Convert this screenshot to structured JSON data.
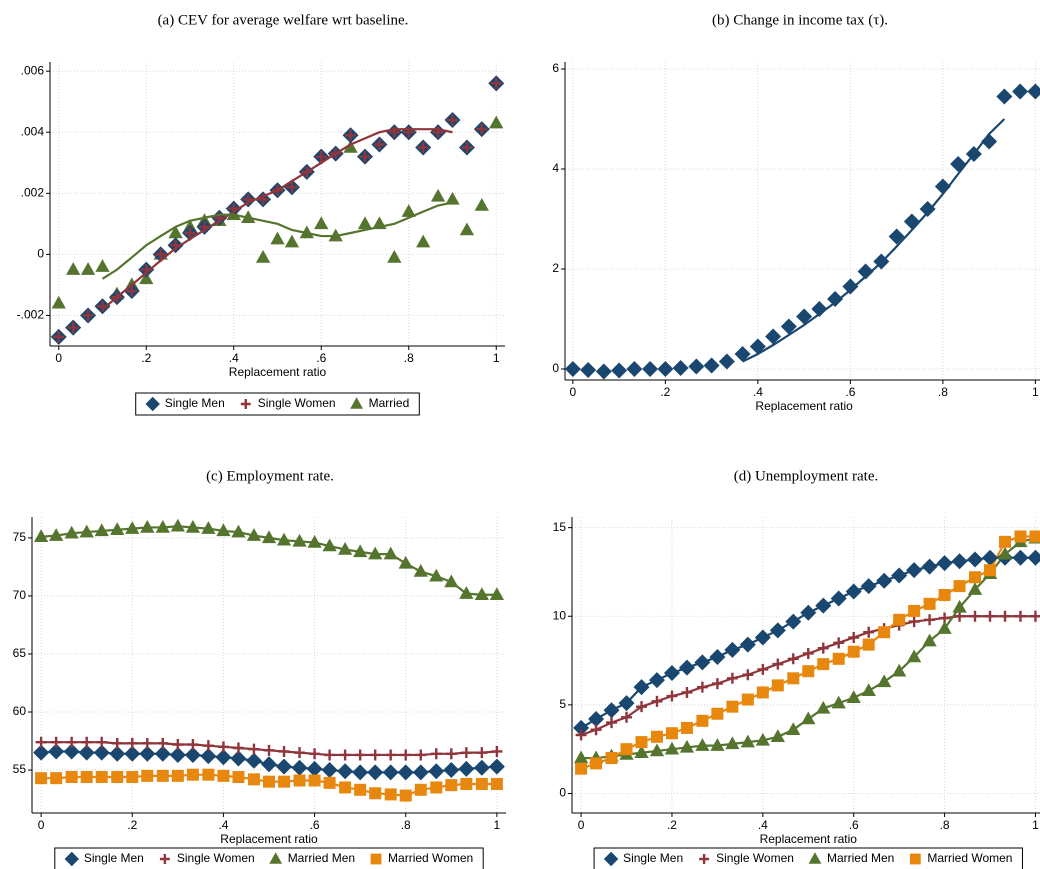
{
  "chart_data": [
    {
      "type": "scatter",
      "title": "(a) CEV for average welfare wrt baseline.",
      "x_label": "Replacement ratio",
      "x": [
        0,
        0.033,
        0.067,
        0.1,
        0.133,
        0.167,
        0.2,
        0.233,
        0.267,
        0.3,
        0.333,
        0.367,
        0.4,
        0.433,
        0.467,
        0.5,
        0.533,
        0.567,
        0.6,
        0.633,
        0.667,
        0.7,
        0.733,
        0.767,
        0.8,
        0.833,
        0.867,
        0.9,
        0.933,
        0.967,
        1
      ],
      "xlim": [
        -0.02,
        1.02
      ],
      "xticks": [
        0,
        {
          "value": 0.2,
          "label": ".2"
        },
        {
          "value": 0.4,
          "label": ".4"
        },
        {
          "value": 0.6,
          "label": ".6"
        },
        {
          "value": 0.8,
          "label": ".8"
        },
        1
      ],
      "ylim": [
        -0.003,
        0.0063
      ],
      "yticks": [
        {
          "value": -0.002,
          "label": "-.002"
        },
        0,
        {
          "value": 0.002,
          "label": ".002"
        },
        {
          "value": 0.004,
          "label": ".004"
        },
        {
          "value": 0.006,
          "label": ".006"
        }
      ],
      "grid": true,
      "legend": "bottom",
      "series": [
        {
          "name": "Single Men",
          "color": "#1a476f",
          "marker": "diamond",
          "values": [
            -0.0027,
            -0.0024,
            -0.002,
            -0.0017,
            -0.0014,
            -0.0012,
            -0.0005,
            0,
            0.0003,
            0.0007,
            0.0009,
            0.0012,
            0.0015,
            0.0018,
            0.0018,
            0.0021,
            0.0022,
            0.0027,
            0.0032,
            0.0033,
            0.0039,
            0.0032,
            0.0036,
            0.004,
            0.004,
            0.0035,
            0.004,
            0.0044,
            0.0035,
            0.0041,
            0.0056
          ]
        },
        {
          "name": "Single Women",
          "color": "#90353b",
          "marker": "plus",
          "values": [
            -0.0027,
            -0.0024,
            -0.002,
            -0.0017,
            -0.0014,
            -0.0012,
            -0.0005,
            0,
            0.0003,
            0.0007,
            0.0009,
            0.0012,
            0.0015,
            0.0018,
            0.0018,
            0.0021,
            0.0022,
            0.0027,
            0.0032,
            0.0033,
            0.0039,
            0.0032,
            0.0036,
            0.004,
            0.004,
            0.0035,
            0.004,
            0.0044,
            0.0035,
            0.0041,
            0.0056
          ],
          "fit": [
            null,
            null,
            null,
            -0.0018,
            -0.0014,
            -0.001,
            -0.0006,
            -0.0002,
            0.0002,
            0.0005,
            0.0008,
            0.0011,
            0.0014,
            0.0017,
            0.0019,
            0.0021,
            0.0024,
            0.0027,
            0.003,
            0.0033,
            0.0036,
            0.0038,
            0.004,
            0.0041,
            0.0041,
            0.0041,
            0.0041,
            0.004,
            null,
            null,
            null
          ]
        },
        {
          "name": "Married",
          "color": "#55752f",
          "marker": "triangle",
          "values": [
            -0.0016,
            -0.0005,
            -0.0005,
            -0.0004,
            -0.0013,
            -0.001,
            -0.0008,
            0,
            0.0007,
            0.0009,
            0.0011,
            0.0011,
            0.0013,
            0.0012,
            -0.0001,
            0.0005,
            0.0004,
            0.0007,
            0.001,
            0.0006,
            0.0035,
            0.001,
            0.001,
            -0.0001,
            0.0014,
            0.0004,
            0.0019,
            0.0018,
            0.0008,
            0.0016,
            0.0043
          ],
          "fit": [
            null,
            null,
            null,
            -0.0008,
            -0.0005,
            -0.0001,
            0.0003,
            0.0006,
            0.0009,
            0.0011,
            0.0012,
            0.0013,
            0.0013,
            0.0012,
            0.0011,
            0.001,
            0.0008,
            0.0007,
            0.0006,
            0.0006,
            0.0007,
            0.0008,
            0.0009,
            0.001,
            0.0012,
            0.0014,
            0.0016,
            0.0017,
            null,
            null,
            null
          ]
        }
      ]
    },
    {
      "type": "scatter",
      "title": "(b) Change in income tax (τ).",
      "x_label": "Replacement ratio",
      "x": [
        0,
        0.033,
        0.067,
        0.1,
        0.133,
        0.167,
        0.2,
        0.233,
        0.267,
        0.3,
        0.333,
        0.367,
        0.4,
        0.433,
        0.467,
        0.5,
        0.533,
        0.567,
        0.6,
        0.633,
        0.667,
        0.7,
        0.733,
        0.767,
        0.8,
        0.833,
        0.867,
        0.9,
        0.933,
        0.967,
        1
      ],
      "xlim": [
        -0.017,
        1.01
      ],
      "xticks": [
        0,
        {
          "value": 0.2,
          "label": ".2"
        },
        {
          "value": 0.4,
          "label": ".4"
        },
        {
          "value": 0.6,
          "label": ".6"
        },
        {
          "value": 0.8,
          "label": ".8"
        },
        1
      ],
      "ylim": [
        -0.22,
        6.14
      ],
      "yticks": [
        0,
        2,
        4,
        6
      ],
      "grid": true,
      "series": [
        {
          "color": "#1a476f",
          "marker": "diamond",
          "values": [
            0,
            -0.02,
            -0.05,
            -0.03,
            0,
            0,
            0,
            0.02,
            0.05,
            0.07,
            0.15,
            0.3,
            0.45,
            0.65,
            0.85,
            1.05,
            1.2,
            1.4,
            1.65,
            1.95,
            2.15,
            2.65,
            2.95,
            3.2,
            3.65,
            4.1,
            4.3,
            4.55,
            5.45,
            5.55,
            5.55
          ],
          "fit": [
            null,
            null,
            null,
            null,
            null,
            null,
            null,
            null,
            null,
            null,
            null,
            0.15,
            0.3,
            0.48,
            0.68,
            0.88,
            1.1,
            1.33,
            1.58,
            1.85,
            2.13,
            2.45,
            2.78,
            3.13,
            3.5,
            3.9,
            4.3,
            4.7,
            5.0,
            null,
            null
          ]
        }
      ]
    },
    {
      "type": "scatter",
      "title": "(c) Employment rate.",
      "x_label": "Replacement ratio",
      "x": [
        0,
        0.033,
        0.067,
        0.1,
        0.133,
        0.167,
        0.2,
        0.233,
        0.267,
        0.3,
        0.333,
        0.367,
        0.4,
        0.433,
        0.467,
        0.5,
        0.533,
        0.567,
        0.6,
        0.633,
        0.667,
        0.7,
        0.733,
        0.767,
        0.8,
        0.833,
        0.867,
        0.9,
        0.933,
        0.967,
        1
      ],
      "xlim": [
        -0.02,
        1.02
      ],
      "xticks": [
        0,
        {
          "value": 0.2,
          "label": ".2"
        },
        {
          "value": 0.4,
          "label": ".4"
        },
        {
          "value": 0.6,
          "label": ".6"
        },
        {
          "value": 0.8,
          "label": ".8"
        },
        1
      ],
      "ylim": [
        51.3,
        76.8
      ],
      "yticks": [
        55,
        60,
        65,
        70,
        75
      ],
      "grid": true,
      "legend": "bottom",
      "connect": true,
      "series": [
        {
          "name": "Single Men",
          "color": "#1a476f",
          "marker": "diamond",
          "values": [
            56.5,
            56.6,
            56.6,
            56.5,
            56.5,
            56.4,
            56.4,
            56.4,
            56.4,
            56.3,
            56.3,
            56.2,
            56.1,
            56.0,
            55.8,
            55.5,
            55.3,
            55.2,
            55.1,
            55.0,
            54.9,
            54.8,
            54.8,
            54.8,
            54.8,
            54.8,
            54.9,
            55.0,
            55.1,
            55.2,
            55.3
          ]
        },
        {
          "name": "Single Women",
          "color": "#90353b",
          "marker": "plus",
          "values": [
            57.4,
            57.4,
            57.4,
            57.4,
            57.4,
            57.3,
            57.3,
            57.3,
            57.3,
            57.2,
            57.2,
            57.1,
            57.0,
            56.9,
            56.8,
            56.7,
            56.6,
            56.5,
            56.4,
            56.3,
            56.3,
            56.3,
            56.3,
            56.3,
            56.3,
            56.3,
            56.4,
            56.4,
            56.5,
            56.5,
            56.6
          ]
        },
        {
          "name": "Married Men",
          "color": "#55752f",
          "marker": "triangle",
          "values": [
            75.1,
            75.2,
            75.4,
            75.5,
            75.6,
            75.7,
            75.8,
            75.9,
            75.9,
            76.0,
            75.9,
            75.8,
            75.6,
            75.5,
            75.2,
            75.0,
            74.8,
            74.7,
            74.6,
            74.3,
            74.0,
            73.8,
            73.6,
            73.6,
            72.8,
            72.1,
            71.7,
            71.2,
            70.2,
            70.1,
            70.1
          ]
        },
        {
          "name": "Married Women",
          "color": "#e8870d",
          "marker": "square",
          "values": [
            54.3,
            54.3,
            54.4,
            54.4,
            54.4,
            54.4,
            54.4,
            54.5,
            54.5,
            54.5,
            54.6,
            54.6,
            54.5,
            54.4,
            54.2,
            54.0,
            54.0,
            54.1,
            54.1,
            53.9,
            53.5,
            53.3,
            53.0,
            52.9,
            52.8,
            53.3,
            53.5,
            53.7,
            53.8,
            53.8,
            53.8
          ]
        }
      ]
    },
    {
      "type": "scatter",
      "title": "(d) Unemployment rate.",
      "x_label": "Replacement ratio",
      "x": [
        0,
        0.033,
        0.067,
        0.1,
        0.133,
        0.167,
        0.2,
        0.233,
        0.267,
        0.3,
        0.333,
        0.367,
        0.4,
        0.433,
        0.467,
        0.5,
        0.533,
        0.567,
        0.6,
        0.633,
        0.667,
        0.7,
        0.733,
        0.767,
        0.8,
        0.833,
        0.867,
        0.9,
        0.933,
        0.967,
        1
      ],
      "xlim": [
        -0.02,
        1.01
      ],
      "xticks": [
        0,
        {
          "value": 0.2,
          "label": ".2"
        },
        {
          "value": 0.4,
          "label": ".4"
        },
        {
          "value": 0.6,
          "label": ".6"
        },
        {
          "value": 0.8,
          "label": ".8"
        },
        1
      ],
      "ylim": [
        -1.1,
        15.6
      ],
      "yticks": [
        0,
        5,
        10,
        15
      ],
      "grid": true,
      "legend": "bottom",
      "connect": true,
      "series": [
        {
          "name": "Single Men",
          "color": "#1a476f",
          "marker": "diamond",
          "values": [
            3.7,
            4.2,
            4.7,
            5.1,
            6.0,
            6.4,
            6.8,
            7.1,
            7.4,
            7.7,
            8.1,
            8.4,
            8.8,
            9.2,
            9.7,
            10.2,
            10.6,
            11.0,
            11.4,
            11.7,
            12.0,
            12.3,
            12.6,
            12.8,
            13.0,
            13.1,
            13.2,
            13.3,
            13.3,
            13.3,
            13.3
          ]
        },
        {
          "name": "Single Women",
          "color": "#90353b",
          "marker": "plus",
          "values": [
            3.3,
            3.6,
            4.0,
            4.3,
            4.9,
            5.2,
            5.5,
            5.7,
            6.0,
            6.2,
            6.5,
            6.7,
            7.0,
            7.3,
            7.6,
            7.9,
            8.2,
            8.5,
            8.8,
            9.1,
            9.3,
            9.5,
            9.7,
            9.8,
            9.9,
            10.0,
            10.0,
            10.0,
            10.0,
            10.0,
            10.0
          ]
        },
        {
          "name": "Married Men",
          "color": "#55752f",
          "marker": "triangle",
          "values": [
            2.0,
            2.0,
            2.1,
            2.2,
            2.3,
            2.4,
            2.5,
            2.6,
            2.7,
            2.7,
            2.8,
            2.9,
            3.0,
            3.2,
            3.6,
            4.2,
            4.8,
            5.1,
            5.4,
            5.8,
            6.3,
            6.9,
            7.7,
            8.6,
            9.3,
            10.5,
            11.5,
            12.4,
            13.5,
            14.2,
            14.4
          ]
        },
        {
          "name": "Married Women",
          "color": "#e8870d",
          "marker": "square",
          "values": [
            1.4,
            1.7,
            2.0,
            2.5,
            2.9,
            3.2,
            3.4,
            3.7,
            4.1,
            4.5,
            4.9,
            5.3,
            5.7,
            6.1,
            6.5,
            6.9,
            7.3,
            7.6,
            8.0,
            8.4,
            9.1,
            9.8,
            10.3,
            10.7,
            11.2,
            11.7,
            12.2,
            12.6,
            14.2,
            14.5,
            14.5
          ]
        }
      ]
    }
  ]
}
